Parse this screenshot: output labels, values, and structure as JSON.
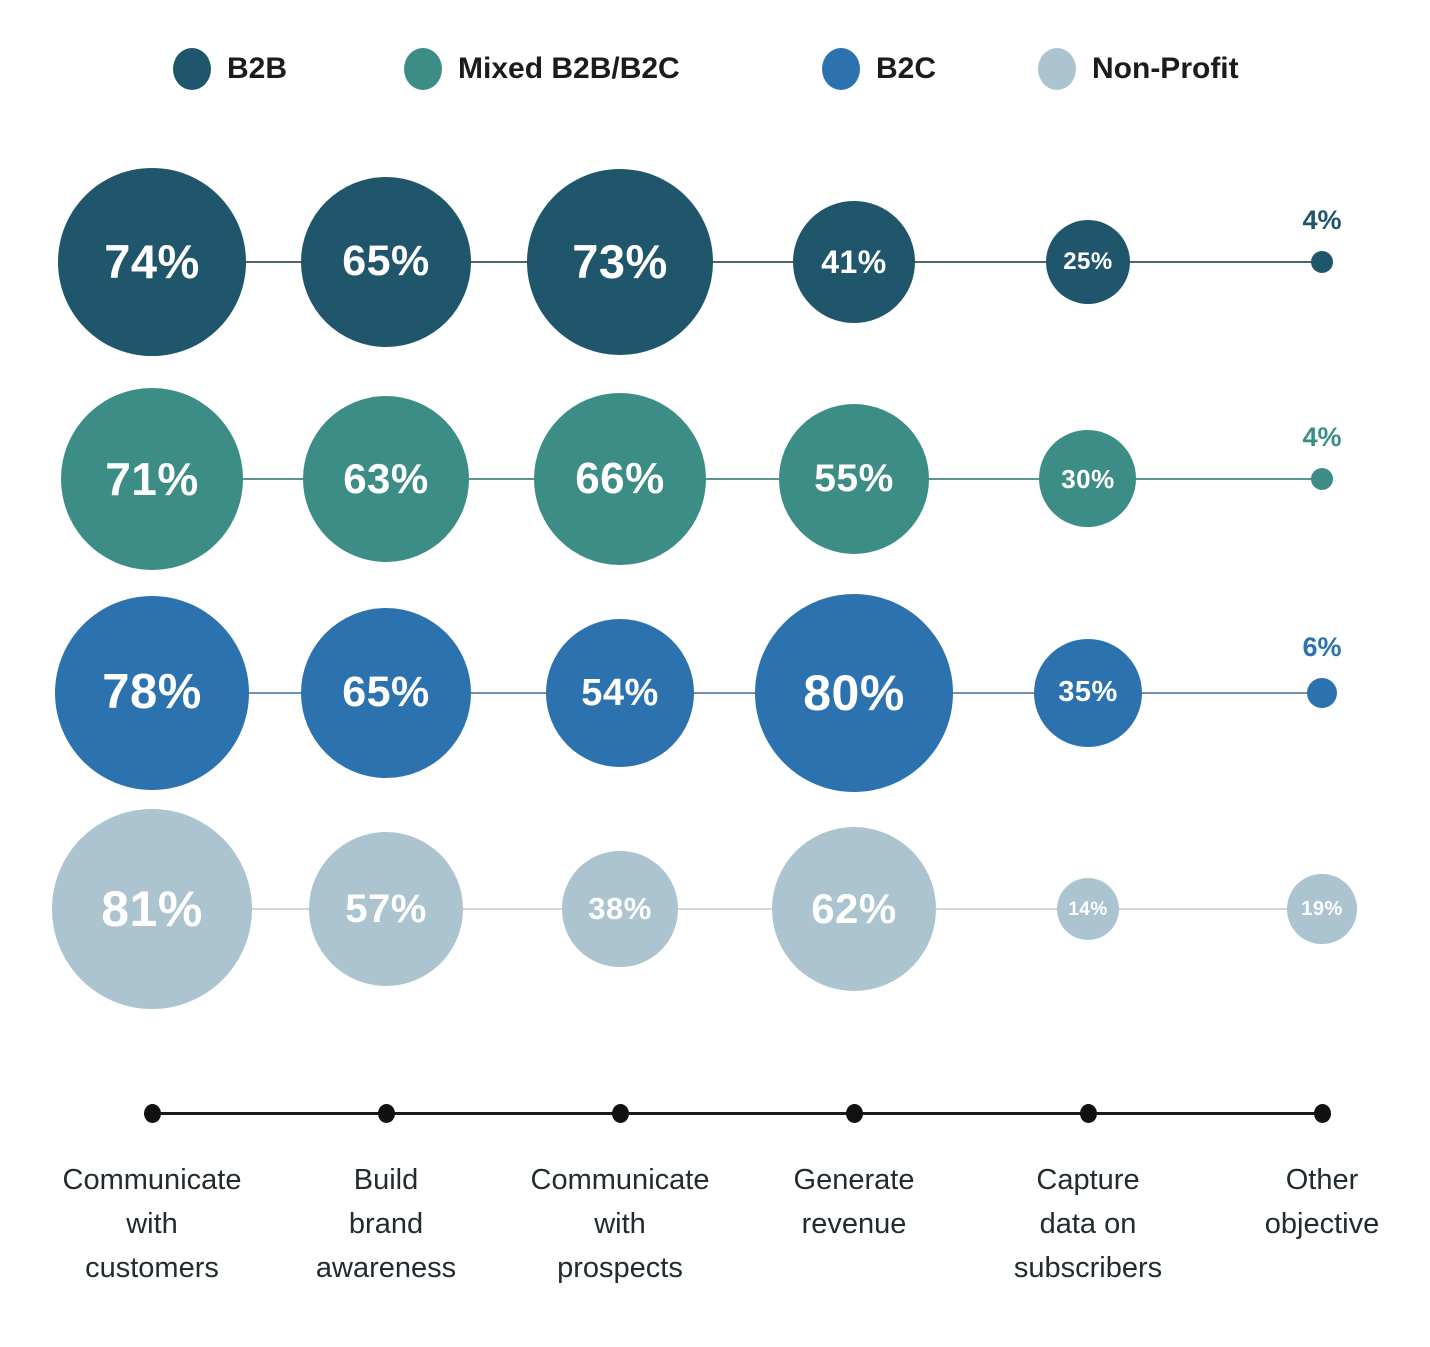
{
  "chart_data": {
    "type": "bubble",
    "title": "",
    "legend_position": "top",
    "background": "#ffffff",
    "bubble_text_color": "#ffffff",
    "axis_color": "#1a1a1a",
    "value_suffix": "%",
    "categories": [
      "Communicate with customers",
      "Build brand awareness",
      "Communicate with prospects",
      "Generate revenue",
      "Capture data on subscribers",
      "Other objective"
    ],
    "category_labels_multiline": [
      "Communicate\nwith\ncustomers",
      "Build\nbrand\nawareness",
      "Communicate\nwith\nprospects",
      "Generate\nrevenue",
      "Capture\ndata on\nsubscribers",
      "Other\nobjective"
    ],
    "series": [
      {
        "name": "B2B",
        "color": "#20566b",
        "line_color": "#4e6470",
        "values": [
          74,
          65,
          73,
          41,
          25,
          4
        ]
      },
      {
        "name": "Mixed B2B/B2C",
        "color": "#3c8d85",
        "line_color": "#5f948e",
        "values": [
          71,
          63,
          66,
          55,
          30,
          4
        ]
      },
      {
        "name": "B2C",
        "color": "#2b72ae",
        "line_color": "#6f92b0",
        "values": [
          78,
          65,
          54,
          80,
          35,
          6
        ]
      },
      {
        "name": "Non-Profit",
        "color": "#abc4d0",
        "line_color": "#ccd8de",
        "values": [
          81,
          57,
          38,
          62,
          14,
          19
        ]
      }
    ]
  },
  "legend": {
    "items": [
      {
        "label": "B2B",
        "color": "#20566b"
      },
      {
        "label": "Mixed B2B/B2C",
        "color": "#3c8d85"
      },
      {
        "label": "B2C",
        "color": "#2b72ae"
      },
      {
        "label": "Non-Profit",
        "color": "#abc4d0"
      }
    ]
  }
}
